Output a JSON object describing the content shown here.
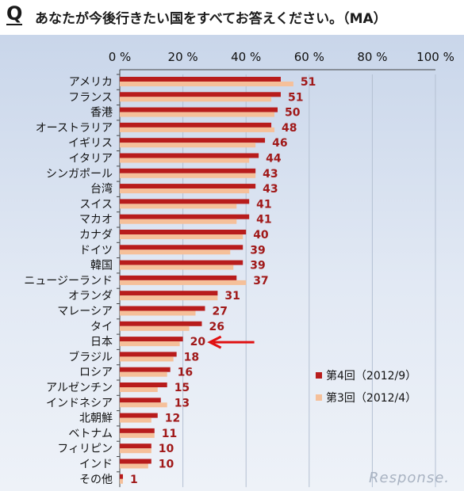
{
  "header": {
    "q_mark": "Q",
    "question": "あなたが今後行きたい国をすべてお答えください。（MA）"
  },
  "watermark": "Response.",
  "chart_data": {
    "type": "bar",
    "orientation": "horizontal",
    "title": "",
    "xlabel": "",
    "ylabel": "",
    "xlim": [
      0,
      100
    ],
    "x_ticks": [
      "0 %",
      "20 %",
      "40 %",
      "60 %",
      "80 %",
      "100 %"
    ],
    "categories": [
      "アメリカ",
      "フランス",
      "香港",
      "オーストラリア",
      "イギリス",
      "イタリア",
      "シンガポール",
      "台湾",
      "スイス",
      "マカオ",
      "カナダ",
      "ドイツ",
      "韓国",
      "ニュージーランド",
      "オランダ",
      "マレーシア",
      "タイ",
      "日本",
      "ブラジル",
      "ロシア",
      "アルゼンチン",
      "インドネシア",
      "北朝鮮",
      "ベトナム",
      "フィリピン",
      "インド",
      "その他"
    ],
    "series": [
      {
        "name": "第4回（2012/9）",
        "color": "#b81c1c",
        "values": [
          51,
          51,
          50,
          48,
          46,
          44,
          43,
          43,
          41,
          41,
          40,
          39,
          39,
          37,
          31,
          27,
          26,
          20,
          18,
          16,
          15,
          13,
          12,
          11,
          10,
          10,
          1
        ]
      },
      {
        "name": "第3回（2012/4）",
        "color": "#f5c09a",
        "values": [
          55,
          48,
          49,
          49,
          43,
          41,
          43,
          41,
          37,
          37,
          39,
          35,
          36,
          40,
          31,
          24,
          22,
          19,
          17,
          15,
          12,
          15,
          10,
          11,
          10,
          9,
          1
        ]
      }
    ],
    "data_labels": [
      "51",
      "51",
      "50",
      "48",
      "46",
      "44",
      "43",
      "43",
      "41",
      "41",
      "40",
      "39",
      "39",
      "37",
      "31",
      "27",
      "26",
      "20",
      "18",
      "16",
      "15",
      "13",
      "12",
      "11",
      "10",
      "10",
      "1"
    ],
    "highlight": {
      "category": "日本",
      "marker": "arrow",
      "color": "#e01010"
    },
    "grid": true,
    "legend_position": "right-middle"
  }
}
